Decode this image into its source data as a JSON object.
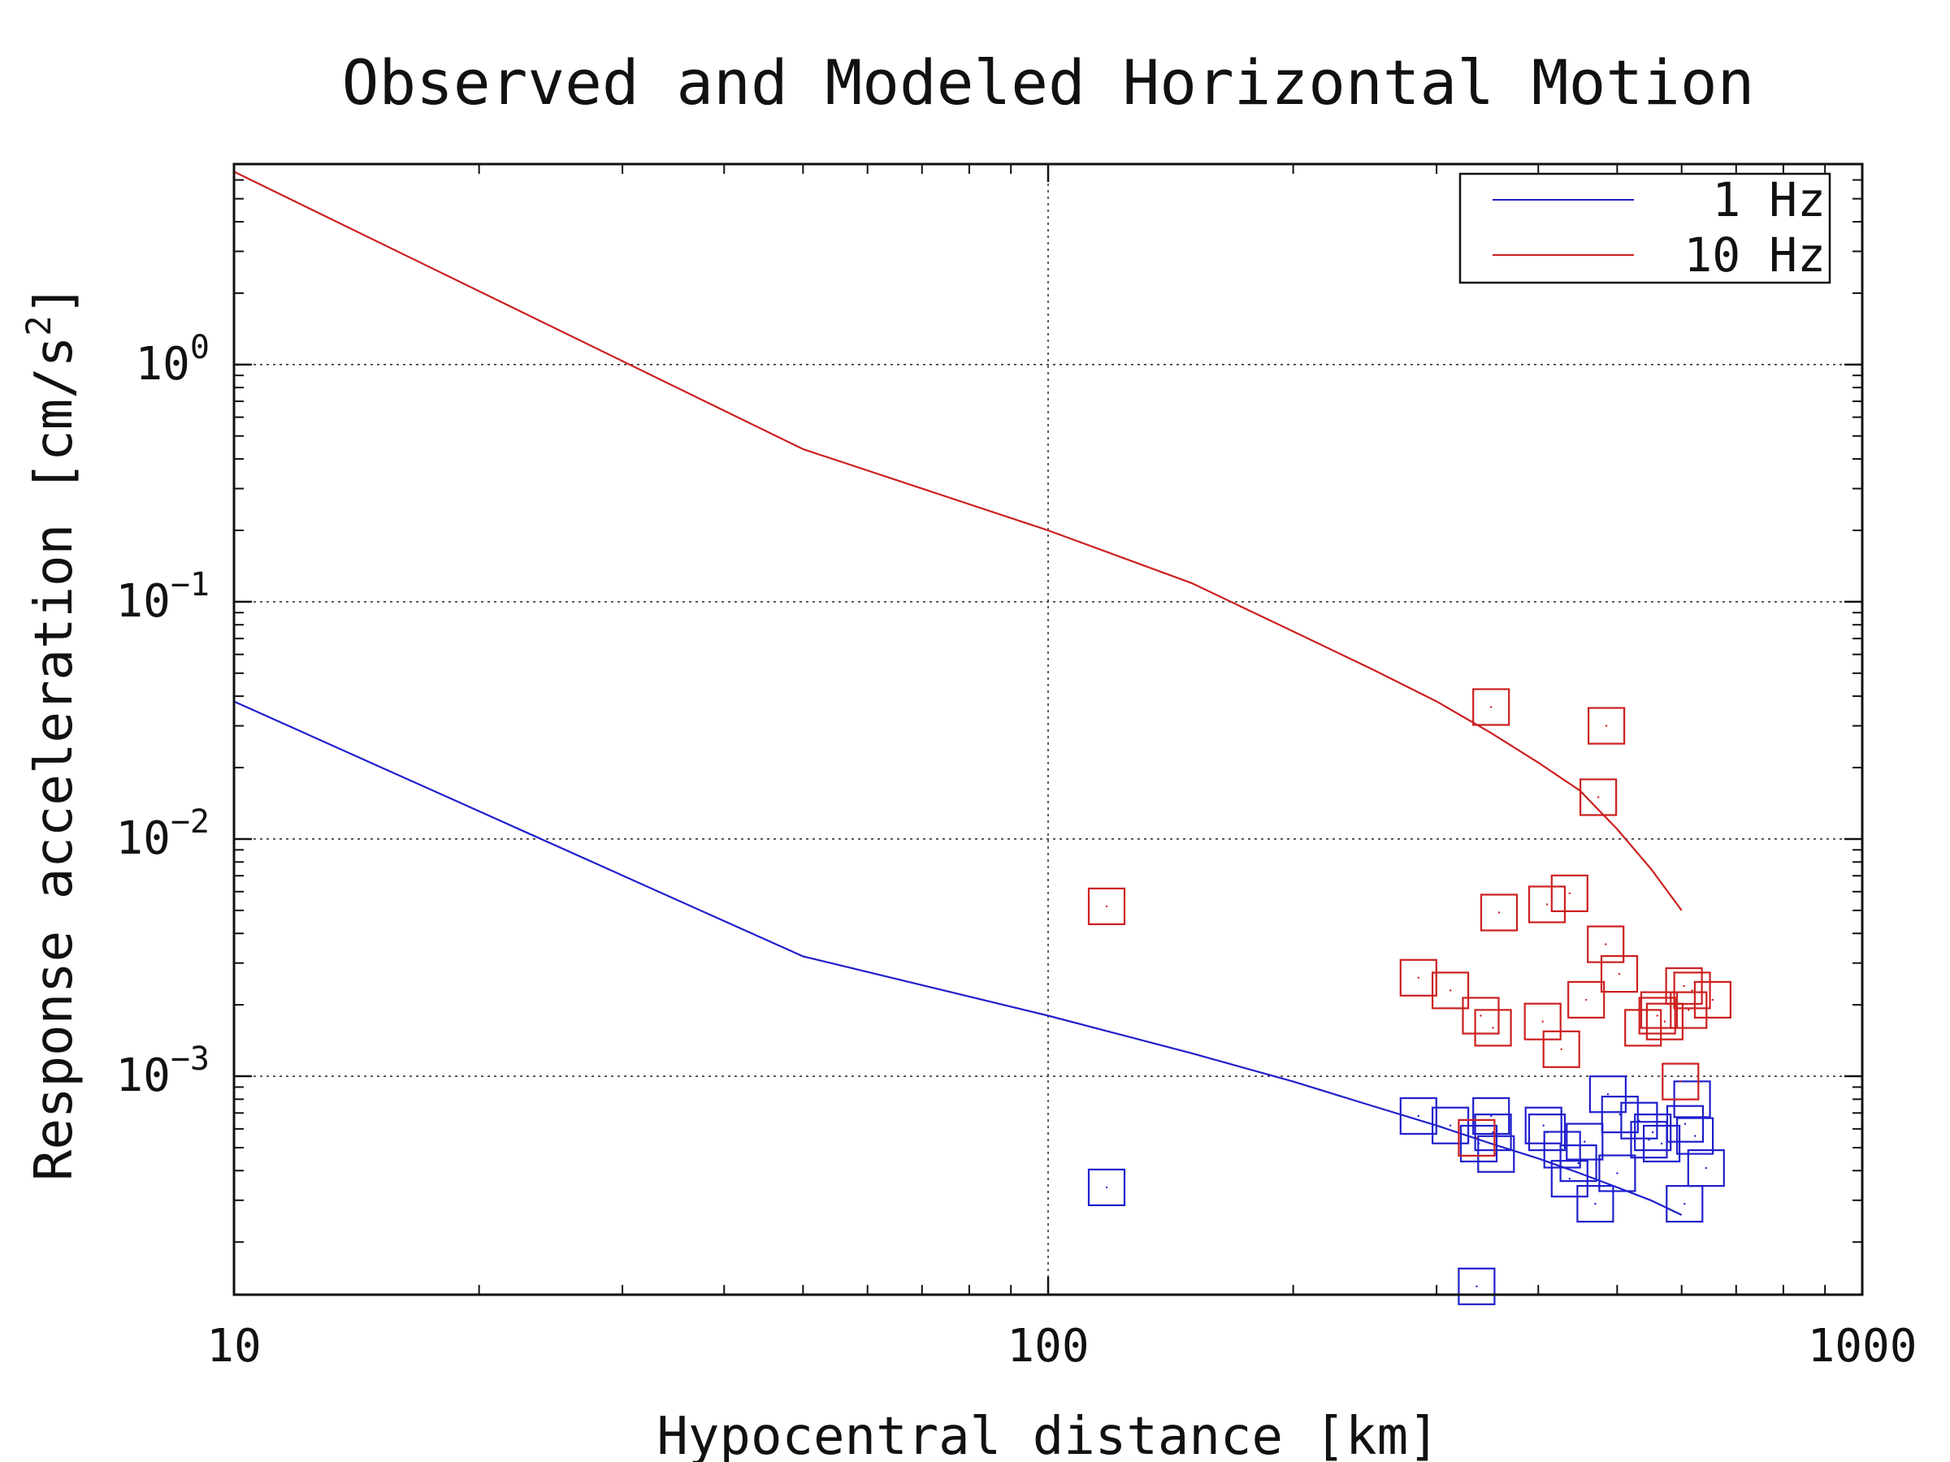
{
  "chart_data": {
    "type": "scatter",
    "title": "Observed and Modeled Horizontal Motion",
    "xlabel": "Hypocentral distance [km]",
    "ylabel": "Response acceleration [cm/s",
    "ylabel_sup": "2",
    "ylabel_close": "]",
    "x_scale": "log",
    "y_scale": "log",
    "xlim": [
      10,
      1000
    ],
    "ylim": [
      0.00012,
      7
    ],
    "grid": true,
    "legend_position": "top-right",
    "x_ticks": [
      {
        "value": 10,
        "label": "10"
      },
      {
        "value": 100,
        "label": "100"
      },
      {
        "value": 1000,
        "label": "1000"
      }
    ],
    "y_ticks": [
      {
        "value": 1,
        "base": "10",
        "exp": "0"
      },
      {
        "value": 0.1,
        "base": "10",
        "exp": "−1"
      },
      {
        "value": 0.01,
        "base": "10",
        "exp": "−2"
      },
      {
        "value": 0.001,
        "base": "10",
        "exp": "−3"
      }
    ],
    "series": [
      {
        "name": "1 Hz",
        "color": "#1f1fcc",
        "line": {
          "x": [
            10,
            50,
            100,
            150,
            200,
            250,
            300,
            350,
            400,
            450,
            500,
            550,
            600
          ],
          "y": [
            0.038,
            0.0032,
            0.0018,
            0.00125,
            0.00095,
            0.00075,
            0.00062,
            0.00052,
            0.00045,
            0.00039,
            0.00034,
            0.0003,
            0.00026
          ]
        },
        "points": {
          "x": [
            118,
            285,
            312,
            336,
            338,
            350,
            352,
            355,
            406,
            410,
            428,
            437,
            448,
            456,
            470,
            487,
            500,
            504,
            532,
            547,
            553,
            567,
            605,
            606,
            618,
            623,
            643
          ],
          "y": [
            0.00034,
            0.00068,
            0.00062,
            0.00013,
            0.00052,
            0.00068,
            0.00058,
            0.00047,
            0.00062,
            0.00058,
            0.00049,
            0.00037,
            0.00043,
            0.00053,
            0.00029,
            0.00084,
            0.00039,
            0.00069,
            0.00065,
            0.00054,
            0.00058,
            0.00052,
            0.00029,
            0.00063,
            0.0008,
            0.00056,
            0.00041
          ]
        }
      },
      {
        "name": "10 Hz",
        "color": "#cc1f1f",
        "line": {
          "x": [
            10,
            50,
            100,
            150,
            200,
            250,
            300,
            350,
            400,
            450,
            500,
            550,
            600
          ],
          "y": [
            6.5,
            0.44,
            0.2,
            0.12,
            0.075,
            0.052,
            0.038,
            0.028,
            0.021,
            0.016,
            0.011,
            0.0075,
            0.005
          ]
        },
        "points": {
          "x": [
            118,
            285,
            312,
            336,
            340,
            350,
            352,
            358,
            405,
            410,
            427,
            437,
            458,
            474,
            484,
            485,
            503,
            538,
            560,
            563,
            572,
            598,
            604,
            612,
            618,
            655
          ],
          "y": [
            0.0052,
            0.0026,
            0.0023,
            0.00055,
            0.0018,
            0.036,
            0.0016,
            0.0049,
            0.0017,
            0.0053,
            0.0013,
            0.0059,
            0.0021,
            0.015,
            0.0036,
            0.03,
            0.0027,
            0.0016,
            0.0018,
            0.0019,
            0.0017,
            0.00095,
            0.0024,
            0.0019,
            0.0023,
            0.0021
          ]
        }
      }
    ]
  }
}
